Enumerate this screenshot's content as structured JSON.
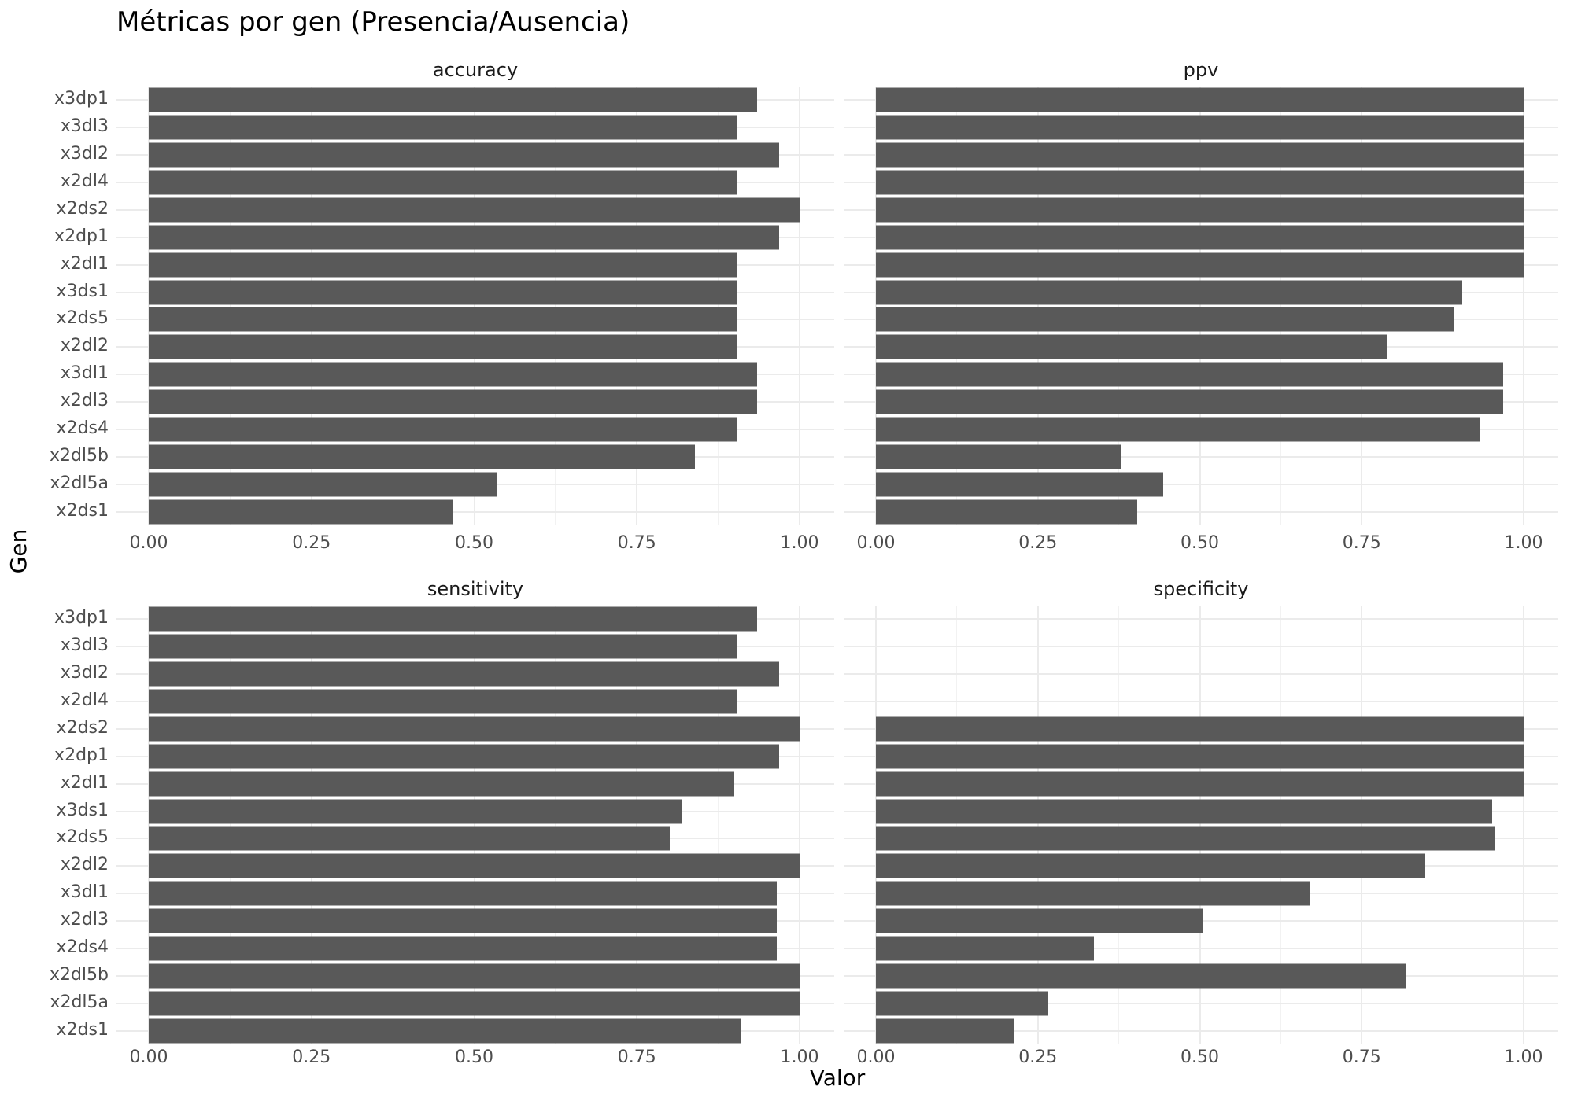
{
  "title": "Métricas por gen (Presencia/Ausencia)",
  "axis": {
    "x_label": "Valor",
    "y_label": "Gen",
    "x_tick_labels": [
      "0.00",
      "0.25",
      "0.50",
      "0.75",
      "1.00"
    ]
  },
  "colors": {
    "bar_fill": "#595959",
    "grid_major": "#ebebeb",
    "grid_minor": "#f2f2f2",
    "axis_text": "#4d4d4d",
    "strip_text": "#1a1a1a",
    "background": "#ffffff"
  },
  "chart_data": {
    "type": "bar",
    "orientation": "horizontal",
    "title": "Métricas por gen (Presencia/Ausencia)",
    "xlabel": "Valor",
    "ylabel": "Gen",
    "xlim": [
      0,
      1
    ],
    "x_ticks": [
      0,
      0.25,
      0.5,
      0.75,
      1.0
    ],
    "grid": true,
    "legend": "none",
    "facets": [
      "accuracy",
      "ppv",
      "sensitivity",
      "specificity"
    ],
    "categories": [
      "x3dp1",
      "x3dl3",
      "x3dl2",
      "x2dl4",
      "x2ds2",
      "x2dp1",
      "x2dl1",
      "x3ds1",
      "x2ds5",
      "x2dl2",
      "x3dl1",
      "x2dl3",
      "x2ds4",
      "x2dl5b",
      "x2dl5a",
      "x2ds1"
    ],
    "series": [
      {
        "name": "accuracy",
        "values": [
          0.935,
          0.903,
          0.968,
          0.903,
          1.0,
          0.968,
          0.903,
          0.903,
          0.903,
          0.903,
          0.935,
          0.935,
          0.903,
          0.839,
          0.535,
          0.468
        ]
      },
      {
        "name": "ppv",
        "values": [
          1.0,
          1.0,
          1.0,
          1.0,
          1.0,
          1.0,
          1.0,
          0.905,
          0.893,
          0.79,
          0.968,
          0.968,
          0.933,
          0.379,
          0.444,
          0.404
        ]
      },
      {
        "name": "sensitivity",
        "values": [
          0.935,
          0.903,
          0.968,
          0.903,
          1.0,
          0.968,
          0.9,
          0.82,
          0.8,
          1.0,
          0.965,
          0.965,
          0.965,
          1.0,
          1.0,
          0.91
        ]
      },
      {
        "name": "specificity",
        "values": [
          0,
          0,
          0,
          0,
          1.0,
          1.0,
          1.0,
          0.952,
          0.955,
          0.848,
          0.67,
          0.504,
          0.336,
          0.819,
          0.266,
          0.213
        ]
      }
    ]
  }
}
